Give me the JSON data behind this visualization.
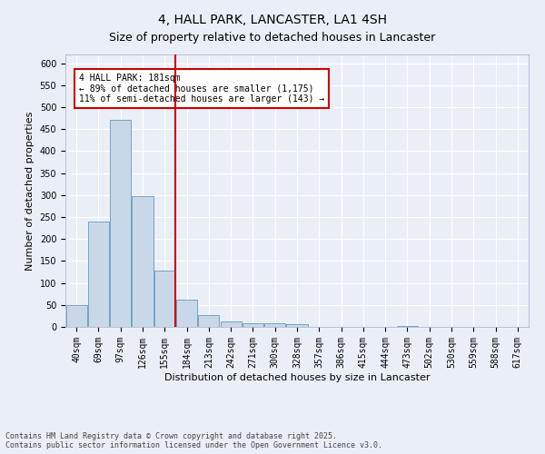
{
  "title": "4, HALL PARK, LANCASTER, LA1 4SH",
  "subtitle": "Size of property relative to detached houses in Lancaster",
  "xlabel": "Distribution of detached houses by size in Lancaster",
  "ylabel": "Number of detached properties",
  "footnote1": "Contains HM Land Registry data © Crown copyright and database right 2025.",
  "footnote2": "Contains public sector information licensed under the Open Government Licence v3.0.",
  "categories": [
    "40sqm",
    "69sqm",
    "97sqm",
    "126sqm",
    "155sqm",
    "184sqm",
    "213sqm",
    "242sqm",
    "271sqm",
    "300sqm",
    "328sqm",
    "357sqm",
    "386sqm",
    "415sqm",
    "444sqm",
    "473sqm",
    "502sqm",
    "530sqm",
    "559sqm",
    "588sqm",
    "617sqm"
  ],
  "values": [
    49,
    239,
    472,
    297,
    128,
    63,
    26,
    13,
    8,
    8,
    6,
    1,
    1,
    0,
    0,
    3,
    0,
    0,
    0,
    1,
    0
  ],
  "bar_color": "#c8d8e8",
  "bar_edge_color": "#6699bb",
  "vline_color": "#cc0000",
  "vline_x_index": 5,
  "annotation_title": "4 HALL PARK: 181sqm",
  "annotation_line1": "← 89% of detached houses are smaller (1,175)",
  "annotation_line2": "11% of semi-detached houses are larger (143) →",
  "annotation_box_color": "#cc0000",
  "ylim": [
    0,
    620
  ],
  "yticks": [
    0,
    50,
    100,
    150,
    200,
    250,
    300,
    350,
    400,
    450,
    500,
    550,
    600
  ],
  "background_color": "#eaeff7",
  "plot_bg_color": "#eaeff7",
  "grid_color": "#ffffff",
  "title_fontsize": 10,
  "subtitle_fontsize": 9,
  "axis_label_fontsize": 8,
  "tick_fontsize": 7,
  "footnote_fontsize": 6
}
